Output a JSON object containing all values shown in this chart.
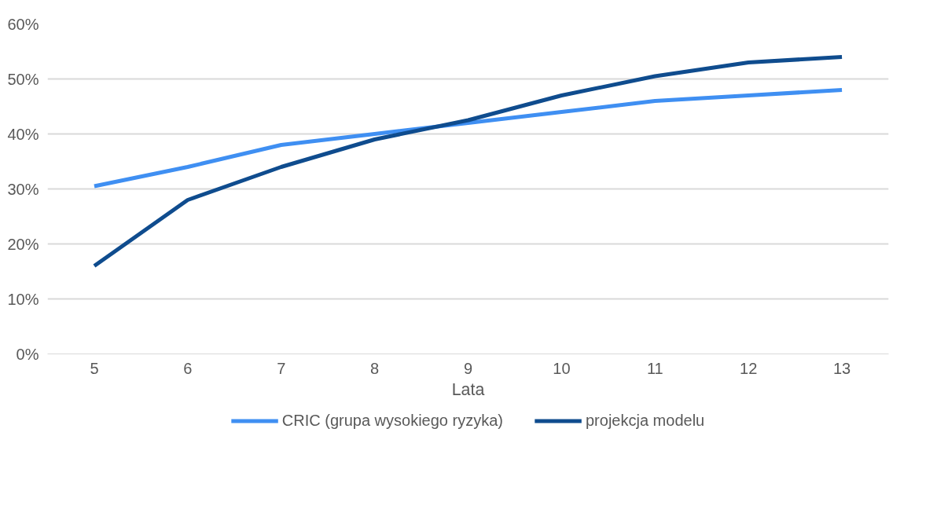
{
  "chart_data": {
    "type": "line",
    "xlabel": "Lata",
    "categories": [
      "5",
      "6",
      "7",
      "8",
      "9",
      "10",
      "11",
      "12",
      "13"
    ],
    "series": [
      {
        "name": "CRIC (grupa wysokiego ryzyka)",
        "color": "#3f8ff2",
        "values": [
          30.5,
          34,
          38,
          40,
          42,
          44,
          46,
          47,
          48
        ]
      },
      {
        "name": "projekcja modelu",
        "color": "#0f4c8e",
        "values": [
          16,
          28,
          34,
          39,
          42.5,
          47,
          50.5,
          53,
          54
        ]
      }
    ],
    "ylim": [
      0,
      60
    ],
    "yticks": [
      {
        "value": 0,
        "label": "0%"
      },
      {
        "value": 10,
        "label": "10%"
      },
      {
        "value": 20,
        "label": "20%"
      },
      {
        "value": 30,
        "label": "30%"
      },
      {
        "value": 40,
        "label": "40%"
      },
      {
        "value": 50,
        "label": "50%"
      },
      {
        "value": 60,
        "label": "60%"
      }
    ],
    "grid": "y",
    "legend": "bottom",
    "line_style": "solid",
    "marker": "none"
  }
}
